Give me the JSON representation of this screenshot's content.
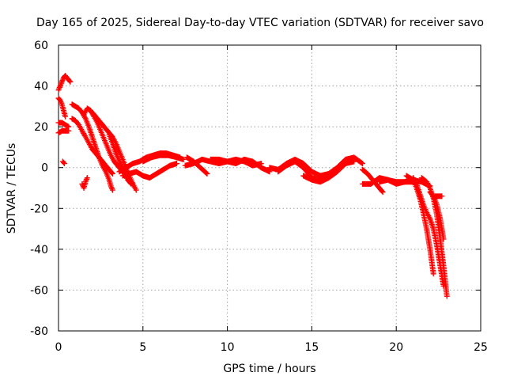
{
  "chart_data": {
    "type": "scatter",
    "title": "Day 165 of 2025, Sidereal Day-to-day VTEC variation (SDTVAR) for receiver savo",
    "xlabel": "GPS time / hours",
    "ylabel": "SDTVAR / TECUs",
    "xlim": [
      0,
      25
    ],
    "ylim": [
      -80,
      60
    ],
    "xticks": [
      0,
      5,
      10,
      15,
      20,
      25
    ],
    "yticks": [
      -80,
      -60,
      -40,
      -20,
      0,
      20,
      40,
      60
    ],
    "xtick_labels": [
      "0",
      "5",
      "10",
      "15",
      "20",
      "25"
    ],
    "ytick_labels": [
      "-80",
      "-60",
      "-40",
      "-20",
      "0",
      "20",
      "40",
      "60"
    ],
    "grid": true,
    "marker": "+",
    "color": "#ff0000",
    "series": [
      {
        "name": "SDTVAR",
        "tracks": [
          {
            "x": [
              0.0,
              0.1,
              0.2,
              0.3,
              0.4,
              0.5,
              0.6,
              0.7
            ],
            "y": [
              38,
              40,
              42,
              44,
              45,
              44,
              43,
              42
            ]
          },
          {
            "x": [
              0.0,
              0.1,
              0.2,
              0.3,
              0.4
            ],
            "y": [
              34,
              33,
              31,
              28,
              25
            ]
          },
          {
            "x": [
              0.0,
              0.2,
              0.4,
              0.6
            ],
            "y": [
              17,
              18,
              18,
              18
            ]
          },
          {
            "x": [
              0.0,
              0.2,
              0.4,
              0.6
            ],
            "y": [
              22,
              22,
              21,
              20
            ]
          },
          {
            "x": [
              0.25,
              0.35
            ],
            "y": [
              3,
              2
            ]
          },
          {
            "x": [
              0.8,
              1.0,
              1.2,
              1.4,
              1.6,
              1.8,
              2.0,
              2.2,
              2.4,
              2.6,
              2.8,
              3.0,
              3.2
            ],
            "y": [
              24,
              23,
              21,
              18,
              15,
              12,
              9,
              7,
              5,
              3,
              1,
              -1,
              -3
            ]
          },
          {
            "x": [
              0.8,
              1.0,
              1.2,
              1.4,
              1.6,
              1.8,
              2.0,
              2.2,
              2.4,
              2.6,
              2.8,
              3.0,
              3.1,
              3.2
            ],
            "y": [
              31,
              30,
              29,
              27,
              24,
              20,
              15,
              10,
              5,
              1,
              -2,
              -6,
              -9,
              -11
            ]
          },
          {
            "x": [
              1.5,
              1.7,
              1.9,
              2.1,
              2.3,
              2.5,
              2.7,
              2.9,
              3.1,
              3.3,
              3.5,
              3.7,
              3.9,
              4.1,
              4.3
            ],
            "y": [
              26,
              29,
              28,
              25,
              22,
              18,
              14,
              10,
              6,
              3,
              1,
              -1,
              -3,
              -6,
              -8
            ]
          },
          {
            "x": [
              1.4,
              1.5,
              1.6,
              1.7
            ],
            "y": [
              -8,
              -10,
              -7,
              -5
            ]
          },
          {
            "x": [
              2.0,
              2.2,
              2.4,
              2.6,
              2.8,
              3.0,
              3.2,
              3.4,
              3.6,
              3.8,
              4.0,
              4.2,
              4.4,
              4.6
            ],
            "y": [
              27,
              25,
              23,
              21,
              19,
              17,
              15,
              12,
              8,
              4,
              0,
              -4,
              -8,
              -11
            ]
          },
          {
            "x": [
              3.0,
              3.2,
              3.4,
              3.6,
              3.8,
              4.0,
              4.2,
              4.4
            ],
            "y": [
              16,
              12,
              7,
              3,
              0,
              -3,
              -6,
              -8
            ]
          },
          {
            "x": [
              3.6,
              4.0,
              4.4,
              4.8,
              5.2,
              5.6,
              6.0,
              6.4,
              6.8,
              7.2
            ],
            "y": [
              -2,
              0,
              2,
              3,
              5,
              6,
              7,
              7,
              6,
              5
            ]
          },
          {
            "x": [
              3.8,
              4.2,
              4.6,
              5.0,
              5.4,
              5.8,
              6.2,
              6.6,
              7.0
            ],
            "y": [
              -4,
              -3,
              -2,
              -4,
              -5,
              -3,
              -1,
              1,
              2
            ]
          },
          {
            "x": [
              5.0,
              5.5,
              6.0,
              6.5,
              7.0,
              7.4
            ],
            "y": [
              3,
              5,
              6,
              6,
              5,
              4
            ]
          },
          {
            "x": [
              7.5,
              8.0,
              8.5,
              9.0,
              9.5,
              10.0,
              10.5,
              11.0,
              11.5,
              12.0
            ],
            "y": [
              1,
              2,
              4,
              3,
              2,
              3,
              4,
              3,
              1,
              2
            ]
          },
          {
            "x": [
              7.6,
              8.0,
              8.4,
              8.8
            ],
            "y": [
              5,
              3,
              0,
              -3
            ]
          },
          {
            "x": [
              9.0,
              9.5,
              10.0,
              10.5,
              11.0,
              11.5,
              12.0,
              12.5
            ],
            "y": [
              4,
              4,
              3,
              2,
              4,
              3,
              0,
              -2
            ]
          },
          {
            "x": [
              12.5,
              13.0,
              13.5,
              14.0,
              14.5,
              15.0,
              15.5,
              16.0,
              16.5,
              17.0,
              17.5,
              18.0
            ],
            "y": [
              0,
              -1,
              2,
              4,
              2,
              -2,
              -4,
              -3,
              0,
              4,
              5,
              2
            ]
          },
          {
            "x": [
              13.0,
              13.5,
              14.0,
              14.5,
              15.0,
              15.5,
              16.0,
              16.5,
              17.0
            ],
            "y": [
              -2,
              1,
              3,
              0,
              -5,
              -6,
              -4,
              -1,
              3
            ]
          },
          {
            "x": [
              14.5,
              15.0,
              15.5,
              16.0,
              16.5,
              17.0,
              17.5
            ],
            "y": [
              -4,
              -6,
              -7,
              -5,
              -2,
              2,
              3
            ]
          },
          {
            "x": [
              18.0,
              18.3,
              18.6,
              18.9,
              19.2
            ],
            "y": [
              -1,
              -3,
              -6,
              -9,
              -12
            ]
          },
          {
            "x": [
              18.0,
              18.5,
              19.0,
              19.5,
              20.0,
              20.5,
              21.0
            ],
            "y": [
              -8,
              -8,
              -5,
              -6,
              -7,
              -7,
              -7
            ]
          },
          {
            "x": [
              19.0,
              19.5,
              20.0,
              20.5,
              21.0,
              21.5,
              22.0
            ],
            "y": [
              -7,
              -6,
              -8,
              -7,
              -6,
              -7,
              -9
            ]
          },
          {
            "x": [
              20.6,
              20.8,
              21.0,
              21.2,
              21.4,
              21.6,
              21.8,
              22.0,
              22.2
            ],
            "y": [
              -4,
              -5,
              -6,
              -10,
              -15,
              -22,
              -30,
              -40,
              -52
            ]
          },
          {
            "x": [
              21.0,
              21.2,
              21.4,
              21.6,
              21.8,
              22.0,
              22.2,
              22.4,
              22.6,
              22.8
            ],
            "y": [
              -5,
              -8,
              -13,
              -18,
              -22,
              -25,
              -30,
              -38,
              -48,
              -58
            ]
          },
          {
            "x": [
              21.5,
              21.8,
              22.0,
              22.2,
              22.4,
              22.6,
              22.8,
              23.0
            ],
            "y": [
              -5,
              -7,
              -10,
              -15,
              -23,
              -35,
              -48,
              -63
            ]
          },
          {
            "x": [
              22.0,
              22.2,
              22.4,
              22.6,
              22.8
            ],
            "y": [
              -12,
              -14,
              -18,
              -25,
              -35
            ]
          },
          {
            "x": [
              22.3,
              22.5,
              22.7
            ],
            "y": [
              -14,
              -14,
              -14
            ]
          }
        ]
      }
    ]
  }
}
